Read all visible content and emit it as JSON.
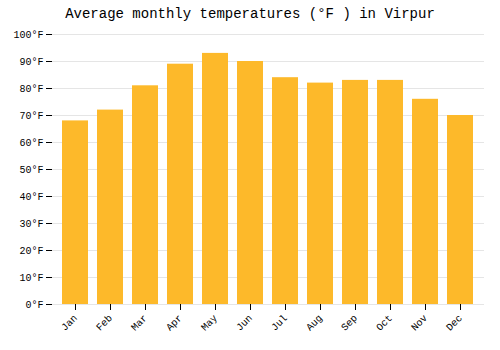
{
  "chart_data": {
    "type": "bar",
    "title": "Average monthly temperatures (°F ) in Virpur",
    "categories": [
      "Jan",
      "Feb",
      "Mar",
      "Apr",
      "May",
      "Jun",
      "Jul",
      "Aug",
      "Sep",
      "Oct",
      "Nov",
      "Dec"
    ],
    "values": [
      68,
      72,
      81,
      89,
      93,
      90,
      84,
      82,
      83,
      83,
      76,
      70
    ],
    "color": "#FDB92A",
    "ylim": [
      0,
      100
    ],
    "yticks": [
      {
        "value": 0,
        "label": "0°F"
      },
      {
        "value": 10,
        "label": "10°F"
      },
      {
        "value": 20,
        "label": "20°F"
      },
      {
        "value": 30,
        "label": "30°F"
      },
      {
        "value": 40,
        "label": "40°F"
      },
      {
        "value": 50,
        "label": "50°F"
      },
      {
        "value": 60,
        "label": "60°F"
      },
      {
        "value": 70,
        "label": "70°F"
      },
      {
        "value": 80,
        "label": "80°F"
      },
      {
        "value": 90,
        "label": "90°F"
      },
      {
        "value": 100,
        "label": "100°F"
      }
    ],
    "grid": true
  }
}
